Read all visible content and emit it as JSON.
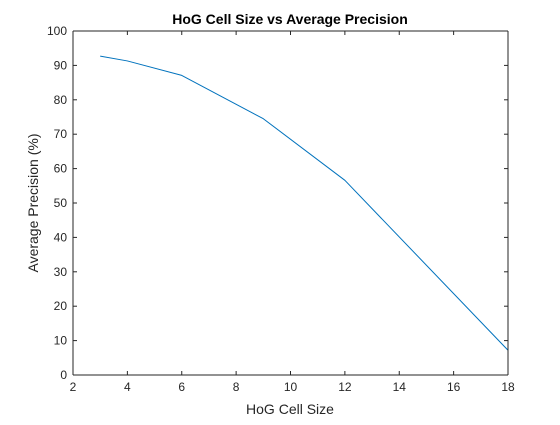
{
  "chart_data": {
    "type": "line",
    "title": "HoG Cell Size vs Average Precision",
    "xlabel": "HoG Cell Size",
    "ylabel": "Average Precision (%)",
    "xlim": [
      2,
      18
    ],
    "ylim": [
      0,
      100
    ],
    "xticks": [
      2,
      4,
      6,
      8,
      10,
      12,
      14,
      16,
      18
    ],
    "yticks": [
      0,
      10,
      20,
      30,
      40,
      50,
      60,
      70,
      80,
      90,
      100
    ],
    "grid": false,
    "series": [
      {
        "color": "#0072bd",
        "x": [
          3,
          4,
          6,
          9,
          12,
          18
        ],
        "y": [
          92.7,
          91.3,
          87.1,
          74.5,
          56.6,
          7.2
        ]
      }
    ]
  }
}
